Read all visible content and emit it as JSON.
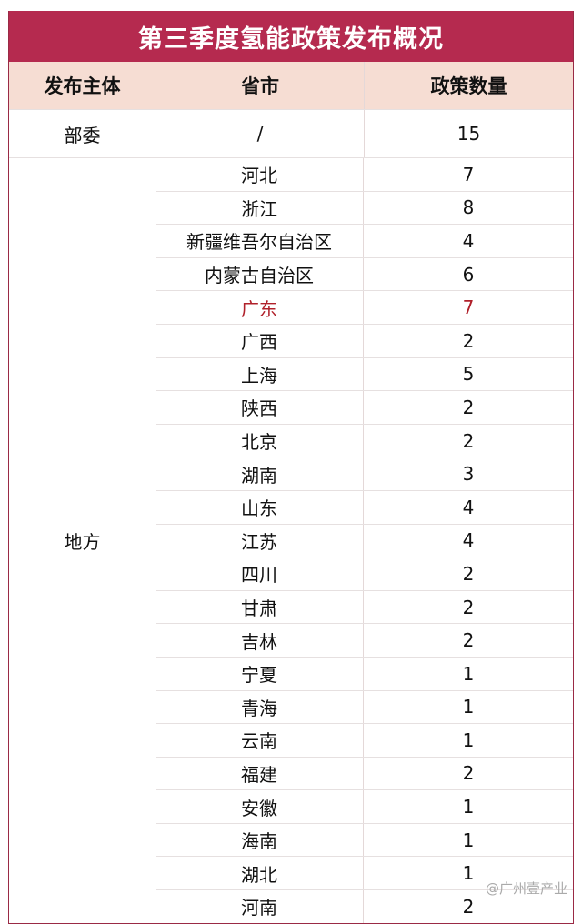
{
  "title": "第三季度氢能政策发布概况",
  "headers": [
    "发布主体",
    "省市",
    "政策数量"
  ],
  "ministry_row": {
    "issuer": "部委",
    "province": "/",
    "count": "15"
  },
  "local_group": {
    "issuer": "地方",
    "rows": [
      {
        "province": "河北",
        "count": "7"
      },
      {
        "province": "浙江",
        "count": "8"
      },
      {
        "province": "新疆维吾尔自治区",
        "count": "4"
      },
      {
        "province": "内蒙古自治区",
        "count": "6"
      },
      {
        "province": "广东",
        "count": "7",
        "highlight": true
      },
      {
        "province": "广西",
        "count": "2"
      },
      {
        "province": "上海",
        "count": "5"
      },
      {
        "province": "陕西",
        "count": "2"
      },
      {
        "province": "北京",
        "count": "2"
      },
      {
        "province": "湖南",
        "count": "3"
      },
      {
        "province": "山东",
        "count": "4"
      },
      {
        "province": "江苏",
        "count": "4"
      },
      {
        "province": "四川",
        "count": "2"
      },
      {
        "province": "甘肃",
        "count": "2"
      },
      {
        "province": "吉林",
        "count": "2"
      },
      {
        "province": "宁夏",
        "count": "1"
      },
      {
        "province": "青海",
        "count": "1"
      },
      {
        "province": "云南",
        "count": "1"
      },
      {
        "province": "福建",
        "count": "2"
      },
      {
        "province": "安徽",
        "count": "1"
      },
      {
        "province": "海南",
        "count": "1"
      },
      {
        "province": "湖北",
        "count": "1"
      },
      {
        "province": "河南",
        "count": "2"
      }
    ]
  },
  "colors": {
    "title_bg": "#b52a4f",
    "header_bg": "#f6ddd3",
    "highlight": "#b0202a"
  },
  "watermark": "@广州壹产业"
}
